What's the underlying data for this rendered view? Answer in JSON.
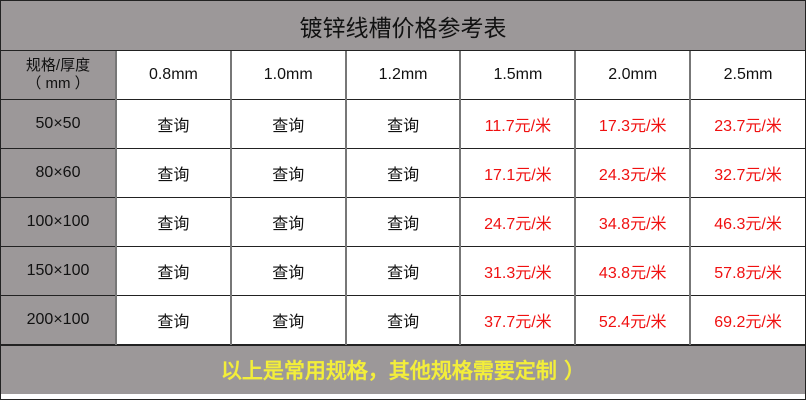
{
  "title": "镀锌线槽价格参考表",
  "header": {
    "corner": [
      "规格/厚度",
      "（ mm ）"
    ],
    "thickness": [
      "0.8mm",
      "1.0mm",
      "1.2mm",
      "1.5mm",
      "2.0mm",
      "2.5mm"
    ]
  },
  "rows": [
    {
      "size": "50×50",
      "cells": [
        "查询",
        "查询",
        "查询",
        "11.7元/米",
        "17.3元/米",
        "23.7元/米"
      ]
    },
    {
      "size": "80×60",
      "cells": [
        "查询",
        "查询",
        "查询",
        "17.1元/米",
        "24.3元/米",
        "32.7元/米"
      ]
    },
    {
      "size": "100×100",
      "cells": [
        "查询",
        "查询",
        "查询",
        "24.7元/米",
        "34.8元/米",
        "46.3元/米"
      ]
    },
    {
      "size": "150×100",
      "cells": [
        "查询",
        "查询",
        "查询",
        "31.3元/米",
        "43.8元/米",
        "57.8元/米"
      ]
    },
    {
      "size": "200×100",
      "cells": [
        "查询",
        "查询",
        "查询",
        "37.7元/米",
        "52.4元/米",
        "69.2元/米"
      ]
    }
  ],
  "footer": "以上是常用规格，其他规格需要定制 ）",
  "colors": {
    "header_bg": "#9c9899",
    "price": "#f01010",
    "footer_text": "#f3ee3a"
  }
}
